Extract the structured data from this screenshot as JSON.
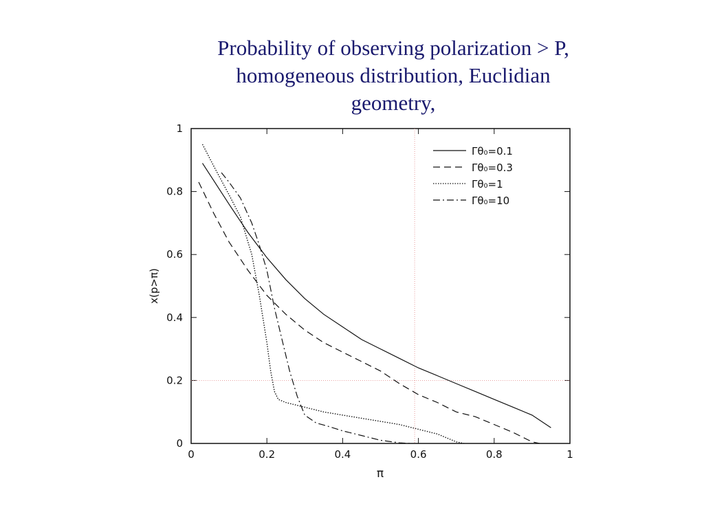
{
  "slide": {
    "title_lines": [
      "Probability of observing polarization > P,",
      "homogeneous distribution, Euclidian",
      "geometry,"
    ]
  },
  "chart_data": {
    "type": "line",
    "title": "",
    "xlabel": "π",
    "ylabel": "x(p>π)",
    "xlim": [
      0,
      1
    ],
    "ylim": [
      0,
      1
    ],
    "xticks": [
      0,
      0.2,
      0.4,
      0.6,
      0.8,
      1
    ],
    "xtick_labels": [
      "0",
      "0.2",
      "0.4",
      "0.6",
      "0.8",
      "1"
    ],
    "yticks": [
      0,
      0.2,
      0.4,
      0.6,
      0.8,
      1
    ],
    "ytick_labels": [
      "0",
      "0.2",
      "0.4",
      "0.6",
      "0.8",
      "1"
    ],
    "legend_position": "top-right",
    "reference_lines": {
      "x": 0.59,
      "y": 0.2
    },
    "series": [
      {
        "name": "Γθ₀=0.1",
        "style": "solid",
        "x": [
          0.03,
          0.1,
          0.15,
          0.2,
          0.25,
          0.3,
          0.35,
          0.4,
          0.45,
          0.5,
          0.55,
          0.6,
          0.65,
          0.7,
          0.75,
          0.8,
          0.85,
          0.9,
          0.95
        ],
        "y": [
          0.89,
          0.76,
          0.67,
          0.59,
          0.52,
          0.46,
          0.41,
          0.37,
          0.33,
          0.3,
          0.27,
          0.24,
          0.215,
          0.19,
          0.165,
          0.14,
          0.115,
          0.09,
          0.05
        ]
      },
      {
        "name": "Γθ₀=0.3",
        "style": "dashed",
        "x": [
          0.02,
          0.06,
          0.1,
          0.15,
          0.2,
          0.25,
          0.3,
          0.35,
          0.4,
          0.45,
          0.5,
          0.55,
          0.6,
          0.65,
          0.7,
          0.75,
          0.8,
          0.85,
          0.9,
          0.92
        ],
        "y": [
          0.83,
          0.73,
          0.64,
          0.55,
          0.47,
          0.41,
          0.36,
          0.32,
          0.29,
          0.26,
          0.23,
          0.19,
          0.155,
          0.13,
          0.1,
          0.085,
          0.06,
          0.035,
          0.005,
          0.0
        ]
      },
      {
        "name": "Γθ₀=1",
        "style": "dotted",
        "x": [
          0.03,
          0.06,
          0.1,
          0.13,
          0.16,
          0.18,
          0.2,
          0.21,
          0.22,
          0.23,
          0.25,
          0.3,
          0.35,
          0.4,
          0.45,
          0.5,
          0.55,
          0.6,
          0.65,
          0.7,
          0.72
        ],
        "y": [
          0.95,
          0.88,
          0.79,
          0.72,
          0.6,
          0.47,
          0.32,
          0.23,
          0.165,
          0.14,
          0.13,
          0.115,
          0.1,
          0.09,
          0.08,
          0.07,
          0.06,
          0.045,
          0.03,
          0.005,
          0.0
        ]
      },
      {
        "name": "Γθ₀=10",
        "style": "dashdot",
        "x": [
          0.08,
          0.1,
          0.13,
          0.16,
          0.18,
          0.2,
          0.22,
          0.24,
          0.26,
          0.28,
          0.3,
          0.33,
          0.36,
          0.4,
          0.45,
          0.5,
          0.55,
          0.58
        ],
        "y": [
          0.86,
          0.83,
          0.78,
          0.7,
          0.63,
          0.55,
          0.43,
          0.33,
          0.23,
          0.15,
          0.09,
          0.065,
          0.055,
          0.04,
          0.025,
          0.01,
          0.002,
          0.0
        ]
      }
    ]
  }
}
